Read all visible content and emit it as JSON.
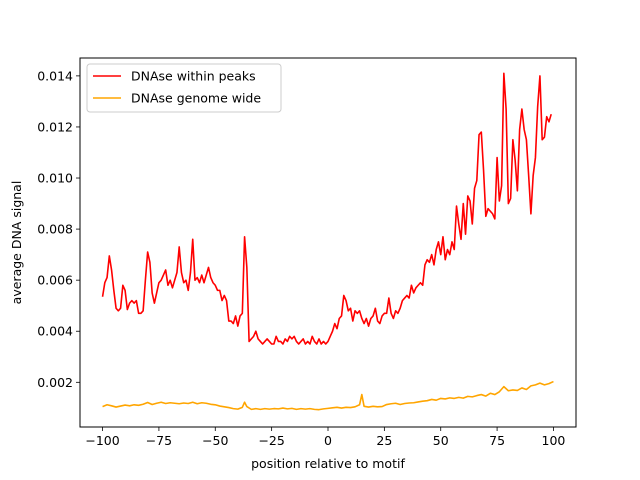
{
  "chart_data": {
    "type": "line",
    "title": "",
    "xlabel": "position relative to motif",
    "ylabel": "average DNA signal",
    "xlim": [
      -110,
      110
    ],
    "ylim": [
      0.00025,
      0.0147
    ],
    "x_ticks": [
      -100,
      -75,
      -50,
      -25,
      0,
      25,
      50,
      75,
      100
    ],
    "x_tick_labels": [
      "−100",
      "−75",
      "−50",
      "−25",
      "0",
      "25",
      "50",
      "75",
      "100"
    ],
    "y_ticks": [
      0.002,
      0.004,
      0.006,
      0.008,
      0.01,
      0.012,
      0.014
    ],
    "y_tick_labels": [
      "0.002",
      "0.004",
      "0.006",
      "0.008",
      "0.010",
      "0.012",
      "0.014"
    ],
    "grid": false,
    "legend_position": "top-left",
    "series": [
      {
        "name": "DNAse within peaks",
        "color": "#ff0000",
        "points": [
          [
            -100,
            0.00535
          ],
          [
            -99,
            0.0059
          ],
          [
            -98,
            0.0061
          ],
          [
            -97,
            0.00695
          ],
          [
            -96,
            0.0064
          ],
          [
            -95,
            0.0056
          ],
          [
            -94,
            0.0049
          ],
          [
            -93,
            0.0048
          ],
          [
            -92,
            0.0049
          ],
          [
            -91,
            0.0058
          ],
          [
            -90,
            0.0056
          ],
          [
            -89,
            0.00485
          ],
          [
            -88,
            0.0051
          ],
          [
            -87,
            0.0052
          ],
          [
            -86,
            0.0051
          ],
          [
            -85,
            0.0052
          ],
          [
            -84,
            0.0047
          ],
          [
            -83,
            0.0047
          ],
          [
            -82,
            0.0048
          ],
          [
            -81,
            0.006
          ],
          [
            -80,
            0.0071
          ],
          [
            -79,
            0.0067
          ],
          [
            -78,
            0.0055
          ],
          [
            -77,
            0.0051
          ],
          [
            -76,
            0.0055
          ],
          [
            -75,
            0.0059
          ],
          [
            -74,
            0.006
          ],
          [
            -73,
            0.0062
          ],
          [
            -72,
            0.0064
          ],
          [
            -71,
            0.0058
          ],
          [
            -70,
            0.006
          ],
          [
            -69,
            0.0057
          ],
          [
            -68,
            0.006
          ],
          [
            -67,
            0.0063
          ],
          [
            -66,
            0.0073
          ],
          [
            -65,
            0.0063
          ],
          [
            -64,
            0.0059
          ],
          [
            -63,
            0.006
          ],
          [
            -62,
            0.0056
          ],
          [
            -61,
            0.0063
          ],
          [
            -60,
            0.0076
          ],
          [
            -59,
            0.006
          ],
          [
            -58,
            0.0061
          ],
          [
            -57,
            0.0059
          ],
          [
            -56,
            0.0062
          ],
          [
            -55,
            0.0059
          ],
          [
            -54,
            0.0062
          ],
          [
            -53,
            0.0065
          ],
          [
            -52,
            0.0061
          ],
          [
            -51,
            0.0059
          ],
          [
            -50,
            0.0058
          ],
          [
            -49,
            0.0056
          ],
          [
            -48,
            0.0056
          ],
          [
            -47,
            0.0052
          ],
          [
            -46,
            0.0054
          ],
          [
            -45,
            0.0052
          ],
          [
            -44,
            0.0044
          ],
          [
            -43,
            0.0044
          ],
          [
            -42,
            0.0043
          ],
          [
            -41,
            0.0046
          ],
          [
            -40,
            0.0042
          ],
          [
            -39,
            0.0046
          ],
          [
            -38,
            0.0047
          ],
          [
            -37,
            0.0077
          ],
          [
            -36,
            0.0065
          ],
          [
            -35,
            0.0036
          ],
          [
            -34,
            0.0037
          ],
          [
            -33,
            0.0038
          ],
          [
            -32,
            0.004
          ],
          [
            -31,
            0.0037
          ],
          [
            -30,
            0.0036
          ],
          [
            -29,
            0.0035
          ],
          [
            -28,
            0.0036
          ],
          [
            -27,
            0.0037
          ],
          [
            -26,
            0.0036
          ],
          [
            -25,
            0.0035
          ],
          [
            -24,
            0.0035
          ],
          [
            -23,
            0.0038
          ],
          [
            -22,
            0.0036
          ],
          [
            -21,
            0.0036
          ],
          [
            -20,
            0.0035
          ],
          [
            -19,
            0.0037
          ],
          [
            -18,
            0.0036
          ],
          [
            -17,
            0.0038
          ],
          [
            -16,
            0.0037
          ],
          [
            -15,
            0.0038
          ],
          [
            -14,
            0.0036
          ],
          [
            -13,
            0.0035
          ],
          [
            -12,
            0.0036
          ],
          [
            -11,
            0.0037
          ],
          [
            -10,
            0.0035
          ],
          [
            -9,
            0.0036
          ],
          [
            -8,
            0.0035
          ],
          [
            -7,
            0.0038
          ],
          [
            -6,
            0.0036
          ],
          [
            -5,
            0.0035
          ],
          [
            -4,
            0.0037
          ],
          [
            -3,
            0.0035
          ],
          [
            -2,
            0.0036
          ],
          [
            -1,
            0.0035
          ],
          [
            0,
            0.0036
          ],
          [
            1,
            0.0038
          ],
          [
            2,
            0.004
          ],
          [
            3,
            0.0043
          ],
          [
            4,
            0.0041
          ],
          [
            5,
            0.0045
          ],
          [
            6,
            0.0046
          ],
          [
            7,
            0.0054
          ],
          [
            8,
            0.0052
          ],
          [
            9,
            0.0048
          ],
          [
            10,
            0.0049
          ],
          [
            11,
            0.0044
          ],
          [
            12,
            0.0048
          ],
          [
            13,
            0.0047
          ],
          [
            14,
            0.0048
          ],
          [
            15,
            0.0045
          ],
          [
            16,
            0.0043
          ],
          [
            17,
            0.0045
          ],
          [
            18,
            0.0042
          ],
          [
            19,
            0.0045
          ],
          [
            20,
            0.0046
          ],
          [
            21,
            0.0049
          ],
          [
            22,
            0.0044
          ],
          [
            23,
            0.0043
          ],
          [
            24,
            0.0046
          ],
          [
            25,
            0.0047
          ],
          [
            26,
            0.0047
          ],
          [
            27,
            0.0053
          ],
          [
            28,
            0.0047
          ],
          [
            29,
            0.0045
          ],
          [
            30,
            0.0048
          ],
          [
            31,
            0.0047
          ],
          [
            32,
            0.0049
          ],
          [
            33,
            0.0052
          ],
          [
            34,
            0.0053
          ],
          [
            35,
            0.0054
          ],
          [
            36,
            0.0053
          ],
          [
            37,
            0.0058
          ],
          [
            38,
            0.0055
          ],
          [
            39,
            0.0057
          ],
          [
            40,
            0.0058
          ],
          [
            41,
            0.0059
          ],
          [
            42,
            0.0058
          ],
          [
            43,
            0.0066
          ],
          [
            44,
            0.0068
          ],
          [
            45,
            0.0067
          ],
          [
            46,
            0.007
          ],
          [
            47,
            0.0066
          ],
          [
            48,
            0.0072
          ],
          [
            49,
            0.0075
          ],
          [
            50,
            0.007
          ],
          [
            51,
            0.0077
          ],
          [
            52,
            0.0068
          ],
          [
            53,
            0.0072
          ],
          [
            54,
            0.007
          ],
          [
            55,
            0.0075
          ],
          [
            56,
            0.0072
          ],
          [
            57,
            0.0089
          ],
          [
            58,
            0.0082
          ],
          [
            59,
            0.0076
          ],
          [
            60,
            0.009
          ],
          [
            61,
            0.0078
          ],
          [
            62,
            0.0093
          ],
          [
            63,
            0.0091
          ],
          [
            64,
            0.0082
          ],
          [
            65,
            0.0096
          ],
          [
            66,
            0.0099
          ],
          [
            67,
            0.0117
          ],
          [
            68,
            0.0118
          ],
          [
            69,
            0.0103
          ],
          [
            70,
            0.0085
          ],
          [
            71,
            0.0088
          ],
          [
            72,
            0.0087
          ],
          [
            73,
            0.0086
          ],
          [
            74,
            0.0084
          ],
          [
            75,
            0.0108
          ],
          [
            76,
            0.0091
          ],
          [
            77,
            0.0097
          ],
          [
            78,
            0.0141
          ],
          [
            79,
            0.0127
          ],
          [
            80,
            0.009
          ],
          [
            81,
            0.0092
          ],
          [
            82,
            0.0115
          ],
          [
            83,
            0.0107
          ],
          [
            84,
            0.0095
          ],
          [
            85,
            0.0119
          ],
          [
            86,
            0.0127
          ],
          [
            87,
            0.0119
          ],
          [
            88,
            0.0115
          ],
          [
            89,
            0.0101
          ],
          [
            90,
            0.0086
          ],
          [
            91,
            0.0101
          ],
          [
            92,
            0.0108
          ],
          [
            93,
            0.0128
          ],
          [
            94,
            0.014
          ],
          [
            95,
            0.0115
          ],
          [
            96,
            0.0116
          ],
          [
            97,
            0.0124
          ],
          [
            98,
            0.0122
          ],
          [
            99,
            0.0125
          ]
        ]
      },
      {
        "name": "DNAse genome wide",
        "color": "#ffa500",
        "points": [
          [
            -100,
            0.00105
          ],
          [
            -98,
            0.00112
          ],
          [
            -96,
            0.00108
          ],
          [
            -94,
            0.00103
          ],
          [
            -92,
            0.00107
          ],
          [
            -90,
            0.00111
          ],
          [
            -88,
            0.00108
          ],
          [
            -86,
            0.00112
          ],
          [
            -84,
            0.0011
          ],
          [
            -82,
            0.00114
          ],
          [
            -80,
            0.00121
          ],
          [
            -78,
            0.00113
          ],
          [
            -76,
            0.00118
          ],
          [
            -74,
            0.00122
          ],
          [
            -72,
            0.00117
          ],
          [
            -70,
            0.0012
          ],
          [
            -68,
            0.00118
          ],
          [
            -66,
            0.00116
          ],
          [
            -64,
            0.00119
          ],
          [
            -62,
            0.00117
          ],
          [
            -60,
            0.00122
          ],
          [
            -58,
            0.00116
          ],
          [
            -56,
            0.0012
          ],
          [
            -54,
            0.00118
          ],
          [
            -52,
            0.00114
          ],
          [
            -50,
            0.00112
          ],
          [
            -48,
            0.00107
          ],
          [
            -46,
            0.00104
          ],
          [
            -44,
            0.00101
          ],
          [
            -42,
            0.00097
          ],
          [
            -40,
            0.00095
          ],
          [
            -38,
            0.00102
          ],
          [
            -37,
            0.00122
          ],
          [
            -36,
            0.00105
          ],
          [
            -34,
            0.00094
          ],
          [
            -32,
            0.00097
          ],
          [
            -30,
            0.00094
          ],
          [
            -28,
            0.00097
          ],
          [
            -26,
            0.00095
          ],
          [
            -24,
            0.00097
          ],
          [
            -22,
            0.00096
          ],
          [
            -20,
            0.00099
          ],
          [
            -18,
            0.00096
          ],
          [
            -16,
            0.00098
          ],
          [
            -14,
            0.00094
          ],
          [
            -12,
            0.00097
          ],
          [
            -10,
            0.00095
          ],
          [
            -8,
            0.00097
          ],
          [
            -6,
            0.00094
          ],
          [
            -4,
            0.00093
          ],
          [
            -2,
            0.00096
          ],
          [
            0,
            0.00098
          ],
          [
            2,
            0.001
          ],
          [
            4,
            0.00102
          ],
          [
            6,
            0.00099
          ],
          [
            8,
            0.00102
          ],
          [
            10,
            0.00101
          ],
          [
            12,
            0.00104
          ],
          [
            14,
            0.00112
          ],
          [
            15,
            0.00152
          ],
          [
            16,
            0.00106
          ],
          [
            18,
            0.00103
          ],
          [
            20,
            0.00106
          ],
          [
            22,
            0.00104
          ],
          [
            24,
            0.00105
          ],
          [
            26,
            0.00113
          ],
          [
            28,
            0.00116
          ],
          [
            30,
            0.00118
          ],
          [
            32,
            0.00113
          ],
          [
            34,
            0.00117
          ],
          [
            36,
            0.00119
          ],
          [
            38,
            0.0012
          ],
          [
            40,
            0.00123
          ],
          [
            42,
            0.00126
          ],
          [
            44,
            0.00128
          ],
          [
            46,
            0.00133
          ],
          [
            48,
            0.0013
          ],
          [
            50,
            0.00137
          ],
          [
            52,
            0.00135
          ],
          [
            54,
            0.00139
          ],
          [
            56,
            0.00137
          ],
          [
            58,
            0.00141
          ],
          [
            60,
            0.00138
          ],
          [
            62,
            0.00145
          ],
          [
            64,
            0.00143
          ],
          [
            66,
            0.00148
          ],
          [
            68,
            0.00152
          ],
          [
            70,
            0.00146
          ],
          [
            72,
            0.00157
          ],
          [
            74,
            0.00152
          ],
          [
            76,
            0.00163
          ],
          [
            78,
            0.00183
          ],
          [
            80,
            0.00167
          ],
          [
            82,
            0.0017
          ],
          [
            84,
            0.00168
          ],
          [
            86,
            0.00178
          ],
          [
            88,
            0.00172
          ],
          [
            90,
            0.00186
          ],
          [
            92,
            0.0019
          ],
          [
            94,
            0.00197
          ],
          [
            96,
            0.0019
          ],
          [
            98,
            0.00195
          ],
          [
            100,
            0.00203
          ]
        ]
      }
    ]
  }
}
